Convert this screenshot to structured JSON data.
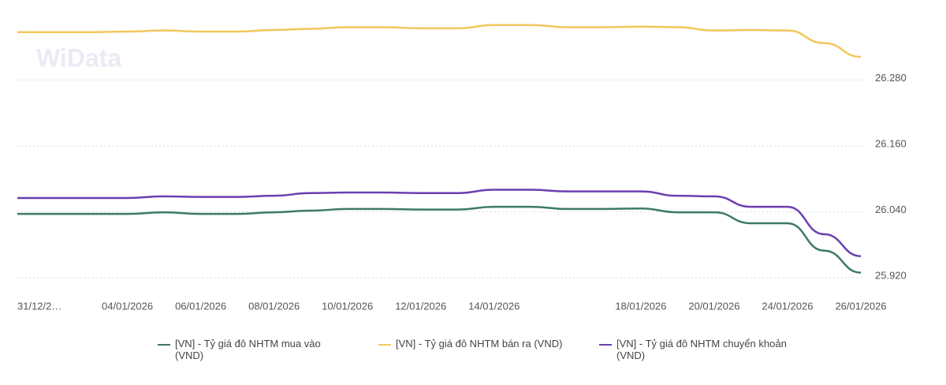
{
  "watermark": "WiData",
  "chart_data": {
    "type": "line",
    "categories": [
      "31/12/2…",
      null,
      null,
      "04/01/2026",
      null,
      "06/01/2026",
      null,
      "08/01/2026",
      null,
      "10/01/2026",
      null,
      "12/01/2026",
      null,
      "14/01/2026",
      null,
      null,
      null,
      "18/01/2026",
      null,
      "20/01/2026",
      null,
      "24/01/2026",
      null,
      "26/01/2026"
    ],
    "series": [
      {
        "name": "[VN] - Tỷ giá đô NHTM mua vào (VND)",
        "color": "#3d7a65",
        "values": [
          26036,
          26036,
          26036,
          26036,
          26039,
          26036,
          26036,
          26039,
          26042,
          26045,
          26045,
          26044,
          26044,
          26049,
          26049,
          26045,
          26045,
          26046,
          26039,
          26039,
          26019,
          26019,
          25969,
          25929
        ]
      },
      {
        "name": "[VN] - Tỷ giá đô NHTM bán ra (VND)",
        "color": "#f2c75c",
        "values": [
          26367,
          26367,
          26367,
          26368,
          26370,
          26368,
          26368,
          26371,
          26373,
          26376,
          26376,
          26374,
          26374,
          26380,
          26380,
          26376,
          26376,
          26377,
          26376,
          26370,
          26371,
          26370,
          26347,
          26322
        ]
      },
      {
        "name": "[VN] - Tỷ giá đô NHTM chuyển khoản (VND)",
        "color": "#6a3fb0",
        "values": [
          26065,
          26065,
          26065,
          26065,
          26068,
          26067,
          26067,
          26069,
          26074,
          26075,
          26075,
          26074,
          26074,
          26080,
          26080,
          26077,
          26077,
          26077,
          26069,
          26068,
          26049,
          26049,
          25999,
          25959
        ]
      }
    ],
    "ylim": [
      25894,
      26404
    ],
    "yticks": [
      {
        "value": 25920,
        "label": "25.920"
      },
      {
        "value": 26040,
        "label": "26.040"
      },
      {
        "value": 26160,
        "label": "26.160"
      },
      {
        "value": 26280,
        "label": "26.280"
      }
    ],
    "grid": true
  }
}
